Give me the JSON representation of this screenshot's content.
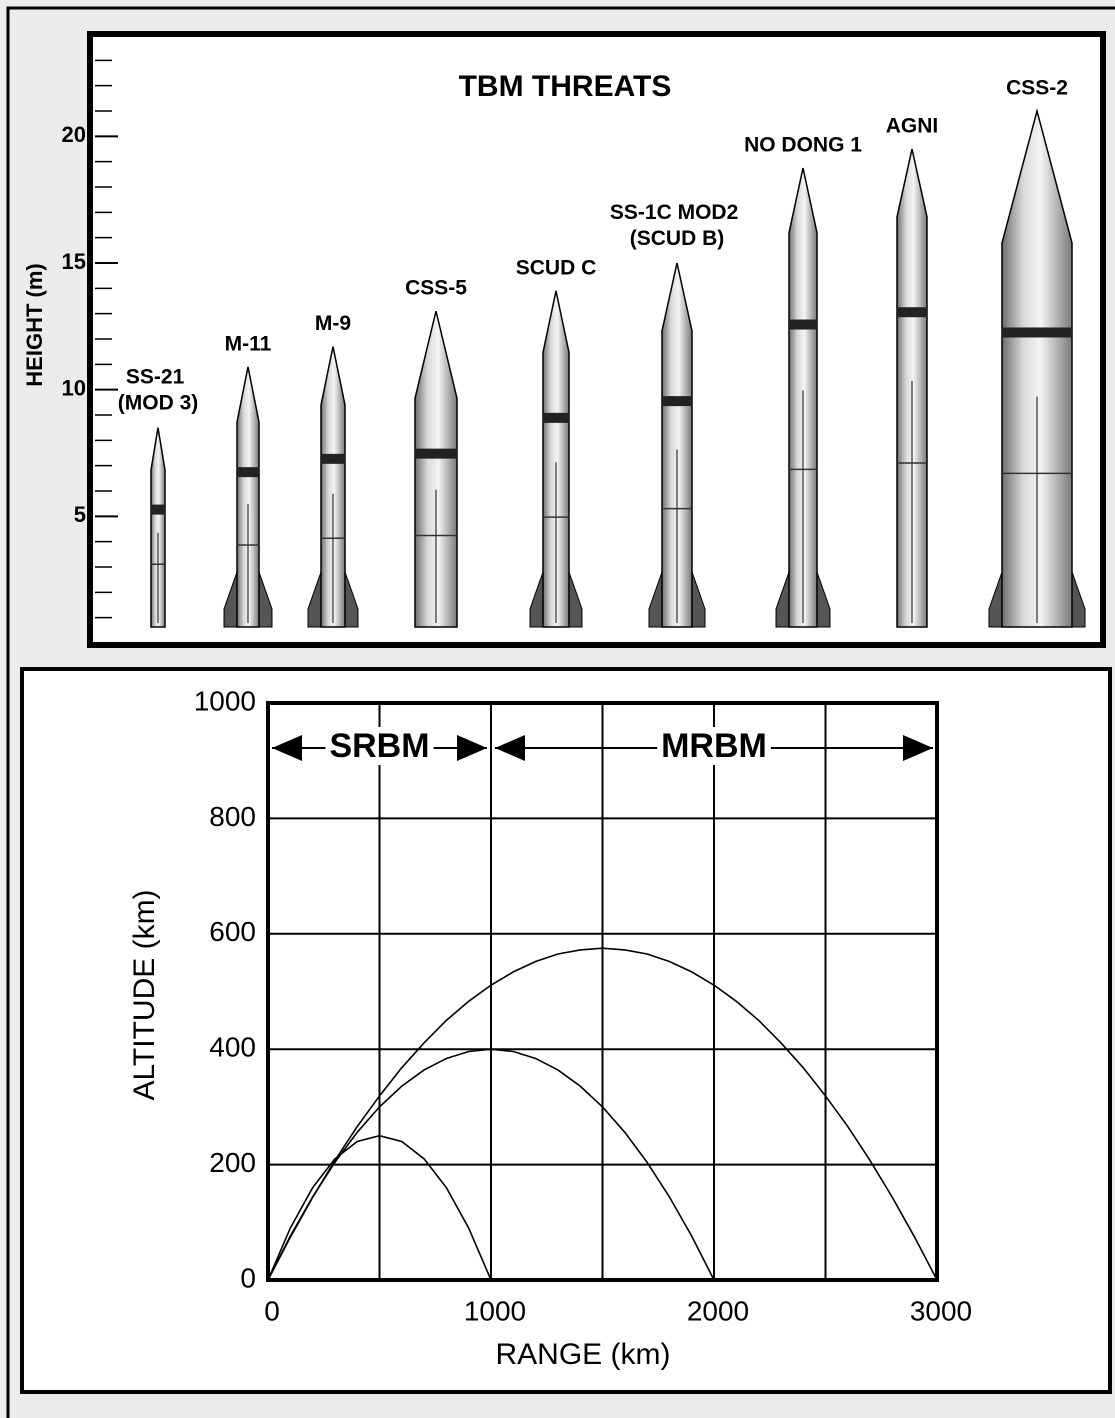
{
  "chart_data": [
    {
      "type": "bar",
      "title": "TBM THREATS",
      "ylabel": "HEIGHT (m)",
      "categories": [
        "SS-21 (MOD 3)",
        "M-11",
        "M-9",
        "CSS-5",
        "SCUD C",
        "SS-1C MOD2 (SCUD B)",
        "NO DONG 1",
        "AGNI",
        "CSS-2"
      ],
      "values": [
        8.5,
        10.9,
        11.7,
        13.1,
        13.9,
        15.0,
        18.75,
        19.5,
        21
      ],
      "color": "#b0b0b0",
      "ylim": [
        0,
        24
      ],
      "yticks": [
        5,
        10,
        15,
        20
      ],
      "yticks_minor": [
        1,
        2,
        3,
        4,
        6,
        7,
        8,
        9,
        11,
        12,
        13,
        14,
        16,
        17,
        18,
        19,
        21,
        22,
        23
      ]
    },
    {
      "type": "line",
      "xlabel": "RANGE (km)",
      "ylabel": "ALTITUDE (km)",
      "x": [
        0,
        100,
        200,
        300,
        400,
        500,
        600,
        700,
        800,
        900,
        1000,
        1100,
        1200,
        1300,
        1400,
        1500,
        1600,
        1700,
        1800,
        1900,
        2000,
        2100,
        2200,
        2300,
        2400,
        2500,
        2600,
        2700,
        2800,
        2900,
        3000
      ],
      "series": [
        {
          "color": "#000000",
          "values": [
            0,
            90,
            160,
            210,
            240,
            250,
            240,
            210,
            160,
            90,
            0,
            null,
            null,
            null,
            null,
            null,
            null,
            null,
            null,
            null,
            null,
            null,
            null,
            null,
            null,
            null,
            null,
            null,
            null,
            null,
            null
          ]
        },
        {
          "color": "#000000",
          "values": [
            0,
            76,
            144,
            204,
            256,
            300,
            336,
            364,
            384,
            396,
            400,
            396,
            384,
            364,
            336,
            300,
            256,
            204,
            144,
            76,
            0,
            null,
            null,
            null,
            null,
            null,
            null,
            null,
            null,
            null,
            null
          ]
        },
        {
          "color": "#000000",
          "values": [
            0,
            74,
            143,
            207,
            266,
            319,
            368,
            411,
            450,
            483,
            511,
            534,
            552,
            565,
            572,
            575,
            572,
            565,
            552,
            534,
            511,
            483,
            450,
            411,
            368,
            319,
            266,
            207,
            143,
            74,
            0
          ]
        }
      ],
      "xlim": [
        0,
        3000
      ],
      "ylim": [
        0,
        1000
      ],
      "xticks": [
        0,
        1000,
        2000,
        3000
      ],
      "yticks": [
        0,
        200,
        400,
        600,
        800,
        1000
      ],
      "xgrid_minor": [
        500,
        1500,
        2500
      ],
      "grid": true,
      "annotations": [
        {
          "text": "SRBM",
          "from": 0,
          "to": 1000
        },
        {
          "text": "MRBM",
          "from": 1000,
          "to": 3000
        }
      ]
    }
  ]
}
